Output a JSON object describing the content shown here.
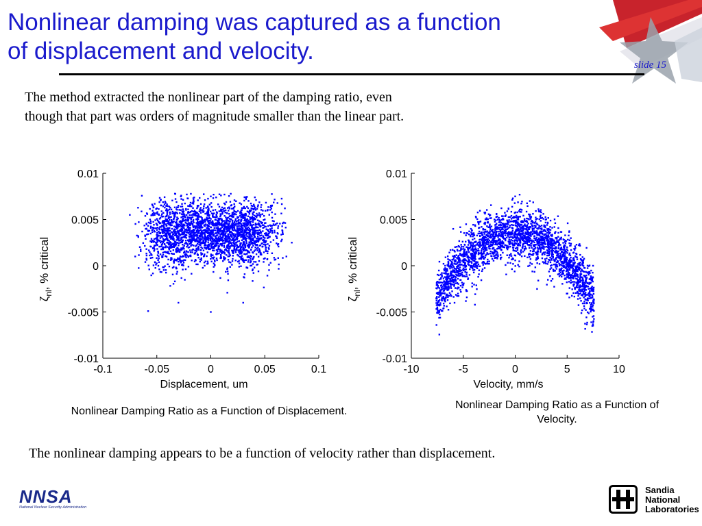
{
  "slide": {
    "title_line1": "Nonlinear damping was captured as a function",
    "title_line2": "of displacement and velocity.",
    "slide_number": "slide 15",
    "intro_line1": "The method extracted the nonlinear part of the damping ratio, even",
    "intro_line2": "though that part was orders of magnitude smaller than the linear part.",
    "caption_left": "Nonlinear Damping Ratio as a Function of Displacement.",
    "caption_right_line1": "Nonlinear Damping Ratio as a Function of",
    "caption_right_line2": "Velocity.",
    "conclusion": "The nonlinear damping appears to be a function of velocity rather than displacement.",
    "logo_left_text": "NNSA",
    "logo_left_sub": "National Nuclear Security Administration",
    "logo_right_line1": "Sandia",
    "logo_right_line2": "National",
    "logo_right_line3": "Laboratories",
    "accent_color": "#1a1acc",
    "marker_color": "#0000ff"
  },
  "chart_data": [
    {
      "type": "scatter",
      "xlabel": "Displacement, um",
      "ylabel_symbol": "ζ",
      "ylabel_subscript": "nl",
      "ylabel_rest": ", % critical",
      "xlim": [
        -0.1,
        0.1
      ],
      "ylim": [
        -0.01,
        0.01
      ],
      "xticks": [
        -0.1,
        -0.05,
        0,
        0.05,
        0.1
      ],
      "xtick_labels": [
        "-0.1",
        "-0.05",
        "0",
        "0.05",
        "0.1"
      ],
      "yticks": [
        -0.01,
        -0.005,
        0,
        0.005,
        0.01
      ],
      "ytick_labels": [
        "-0.01",
        "-0.005",
        "0",
        "0.005",
        "0.01"
      ],
      "points": [
        [
          0.0,
          0.0035
        ],
        [
          -0.05,
          0.003
        ],
        [
          0.05,
          0.003
        ],
        [
          -0.07,
          0.001
        ],
        [
          0.07,
          0.001
        ],
        [
          0.0,
          0.0075
        ],
        [
          0.0,
          -0.005
        ],
        [
          -0.03,
          -0.004
        ],
        [
          0.03,
          -0.004
        ],
        [
          -0.075,
          0.0055
        ],
        [
          0.075,
          0.0025
        ]
      ],
      "cluster": {
        "x_center": 0.0,
        "x_spread": 0.07,
        "y_center": 0.0035,
        "y_spread": 0.0028,
        "n": 2600
      }
    },
    {
      "type": "scatter",
      "xlabel": "Velocity, mm/s",
      "ylabel_symbol": "ζ",
      "ylabel_subscript": "nl",
      "ylabel_rest": ", % critical",
      "xlim": [
        -10,
        10
      ],
      "ylim": [
        -0.01,
        0.01
      ],
      "xticks": [
        -10,
        -5,
        0,
        5,
        10
      ],
      "xtick_labels": [
        "-10",
        "-5",
        "0",
        "5",
        "10"
      ],
      "yticks": [
        -0.01,
        -0.005,
        0,
        0.005,
        0.01
      ],
      "ytick_labels": [
        "-0.01",
        "-0.005",
        "0",
        "0.005",
        "0.01"
      ],
      "points": [
        [
          0,
          0.0035
        ],
        [
          -7.5,
          -0.0045
        ],
        [
          -5,
          0.0
        ],
        [
          5,
          0.002
        ],
        [
          7.5,
          0.0
        ],
        [
          0,
          0.0075
        ],
        [
          -2,
          0.005
        ],
        [
          2,
          0.005
        ]
      ],
      "cluster": {
        "x_center": 0.0,
        "x_spread": 7.6,
        "peak": 0.0035,
        "curvature": 0.000125,
        "y_spread": 0.0017,
        "n": 2600
      }
    }
  ]
}
